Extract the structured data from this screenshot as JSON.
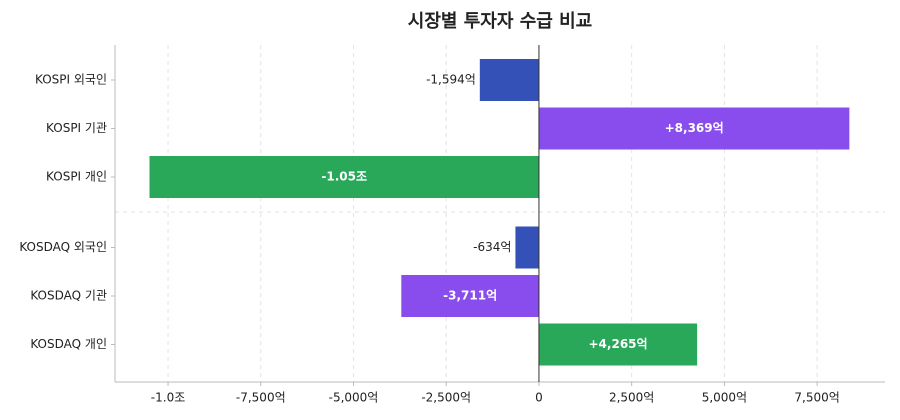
{
  "chart_data": {
    "type": "hbar",
    "title": "시장별 투자자 수급 비교",
    "categories": [
      "KOSPI 외국인",
      "KOSPI 기관",
      "KOSPI 개인",
      "KOSDAQ 외국인",
      "KOSDAQ 기관",
      "KOSDAQ 개인"
    ],
    "values": [
      -1594,
      8369,
      -10500,
      -634,
      -3711,
      4265
    ],
    "value_labels": [
      "-1,594억",
      "+8,369억",
      "-1.05조",
      "-634억",
      "-3,711억",
      "+4,265억"
    ],
    "colors": [
      "#3451b8",
      "#8a4ded",
      "#2aa85a",
      "#3451b8",
      "#8a4ded",
      "#2aa85a"
    ],
    "xlim": [
      -11430,
      9330
    ],
    "xticks": [
      {
        "value": -10000,
        "label": "-1.0조"
      },
      {
        "value": -7500,
        "label": "-7,500억"
      },
      {
        "value": -5000,
        "label": "-5,000억"
      },
      {
        "value": -2500,
        "label": "-2,500억"
      },
      0,
      {
        "value": 2500,
        "label": "2,500억"
      },
      {
        "value": 5000,
        "label": "5,000억"
      },
      {
        "value": 7500,
        "label": "7,500억"
      }
    ],
    "grid": true
  }
}
